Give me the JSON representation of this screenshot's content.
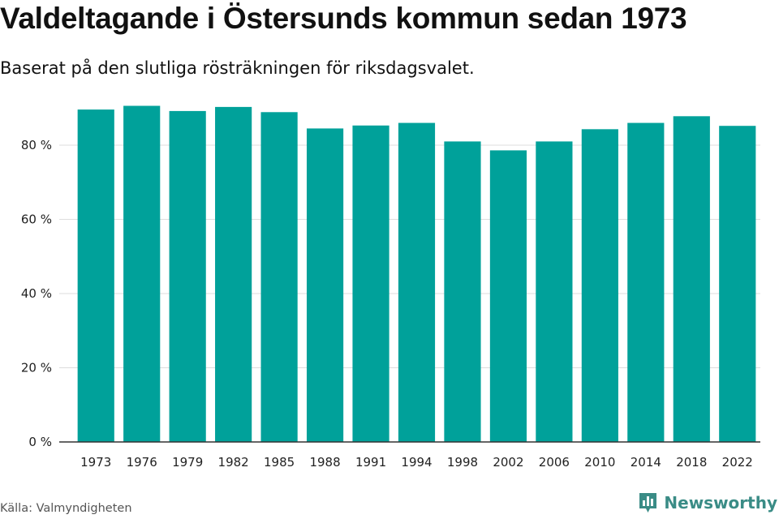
{
  "title": "Valdeltagande i Östersunds kommun sedan 1973",
  "subtitle": "Baserat på den slutliga rösträkningen för riksdagsvalet.",
  "source": "Källa: Valmyndigheten",
  "brand": {
    "name": "Newsworthy",
    "icon": "newsworthy-logo-icon",
    "color": "#3a8c86"
  },
  "colors": {
    "bar": "#00a19a",
    "grid": "#dddddd",
    "axis": "#333333"
  },
  "chart_data": {
    "type": "bar",
    "categories": [
      "1973",
      "1976",
      "1979",
      "1982",
      "1985",
      "1988",
      "1991",
      "1994",
      "1998",
      "2002",
      "2006",
      "2010",
      "2014",
      "2018",
      "2022"
    ],
    "values": [
      89.6,
      90.6,
      89.2,
      90.3,
      88.9,
      84.5,
      85.3,
      86.0,
      81.0,
      78.6,
      81.0,
      84.3,
      86.0,
      87.8,
      85.2
    ],
    "y_ticks": [
      "0 %",
      "20 %",
      "40 %",
      "60 %",
      "80 %"
    ],
    "y_tick_values": [
      0,
      20,
      40,
      60,
      80
    ],
    "ylim": [
      0,
      100
    ],
    "grid": true,
    "legend": "none"
  }
}
